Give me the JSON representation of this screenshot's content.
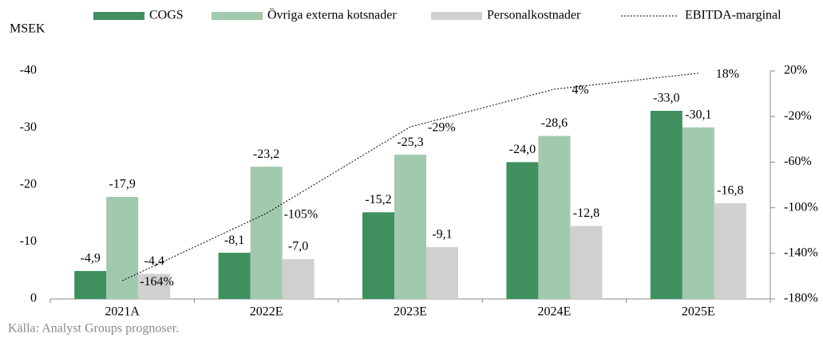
{
  "chart_data": {
    "type": "bar",
    "y_label": "MSEK",
    "source": "Källa: Analyst Groups prognoser.",
    "categories": [
      "2021A",
      "2022E",
      "2023E",
      "2024E",
      "2025E"
    ],
    "series": [
      {
        "name": "COGS",
        "color": "#3f8f5f",
        "values": [
          -4.9,
          -8.1,
          -15.2,
          -24.0,
          -33.0
        ],
        "value_labels": [
          "-4,9",
          "-8,1",
          "-15,2",
          "-24,0",
          "-33,0"
        ]
      },
      {
        "name": "Övriga externa kotsnader",
        "color": "#a1c9ae",
        "values": [
          -17.9,
          -23.2,
          -25.3,
          -28.6,
          -30.1
        ],
        "value_labels": [
          "-17,9",
          "-23,2",
          "-25,3",
          "-28,6",
          "-30,1"
        ]
      },
      {
        "name": "Personalkostnader",
        "color": "#d1d0d1",
        "values": [
          -4.4,
          -7.0,
          -9.1,
          -12.8,
          -16.8
        ],
        "value_labels": [
          "-4,4",
          "-7,0",
          "-9,1",
          "-12,8",
          "-16,8"
        ]
      },
      {
        "name": "EBITDA-marginal",
        "type": "line",
        "line_style": "dotted",
        "color": "#000000",
        "axis": "y2",
        "values": [
          -164,
          -105,
          -29,
          4,
          18
        ],
        "value_labels": [
          "-164%",
          "-105%",
          "-29%",
          "4%",
          "18%"
        ]
      }
    ],
    "ylim": [
      0,
      -40
    ],
    "yticks": [
      0,
      -10,
      -20,
      -30,
      -40
    ],
    "y2lim": [
      -180,
      20
    ],
    "y2ticks": [
      {
        "value": -180,
        "label": "-180%"
      },
      {
        "value": -140,
        "label": "-140%"
      },
      {
        "value": -100,
        "label": "-100%"
      },
      {
        "value": -60,
        "label": "-60%"
      },
      {
        "value": -20,
        "label": "-20%"
      },
      {
        "value": 20,
        "label": "20%"
      }
    ],
    "legend": "top"
  }
}
